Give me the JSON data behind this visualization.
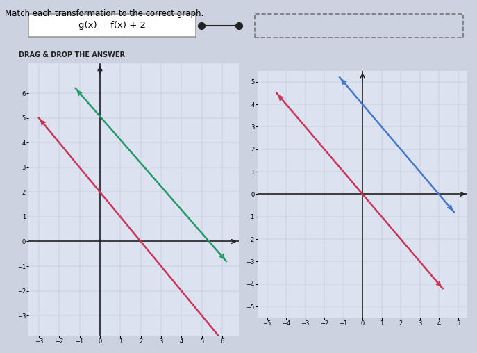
{
  "title_text": "Match each transformation to the correct graph.",
  "label_text": "g(x) = f(x) + 2",
  "drag_drop_text": "DRAG & DROP THE ANSWER",
  "bg_color": "#cdd2e0",
  "grid_bg": "#dce2f0",
  "graph1": {
    "xlim": [
      -3.5,
      6.8
    ],
    "ylim": [
      -3.8,
      7.2
    ],
    "xticks": [
      -3,
      -2,
      -1,
      0,
      1,
      2,
      3,
      4,
      5,
      6
    ],
    "yticks": [
      -3,
      -2,
      -1,
      0,
      1,
      2,
      3,
      4,
      5,
      6
    ],
    "pink_line": {
      "x1": -3,
      "y1": 5,
      "x2": 6.2,
      "y2": -4.2,
      "color": "#cc3355"
    },
    "teal_line": {
      "x1": -1.2,
      "y1": 6.2,
      "x2": 6.2,
      "y2": -0.8,
      "color": "#229966"
    }
  },
  "graph2": {
    "xlim": [
      -5.5,
      5.5
    ],
    "ylim": [
      -5.5,
      5.5
    ],
    "xticks": [
      -5,
      -4,
      -3,
      -2,
      -1,
      0,
      1,
      2,
      3,
      4,
      5
    ],
    "yticks": [
      -5,
      -4,
      -3,
      -2,
      -1,
      0,
      1,
      2,
      3,
      4,
      5
    ],
    "pink_line": {
      "x1": -4.5,
      "y1": 4.5,
      "x2": 4.2,
      "y2": -4.2,
      "color": "#cc3355"
    },
    "blue_line": {
      "x1": -1.2,
      "y1": 5.2,
      "x2": 4.8,
      "y2": -0.8,
      "color": "#4477cc"
    }
  }
}
